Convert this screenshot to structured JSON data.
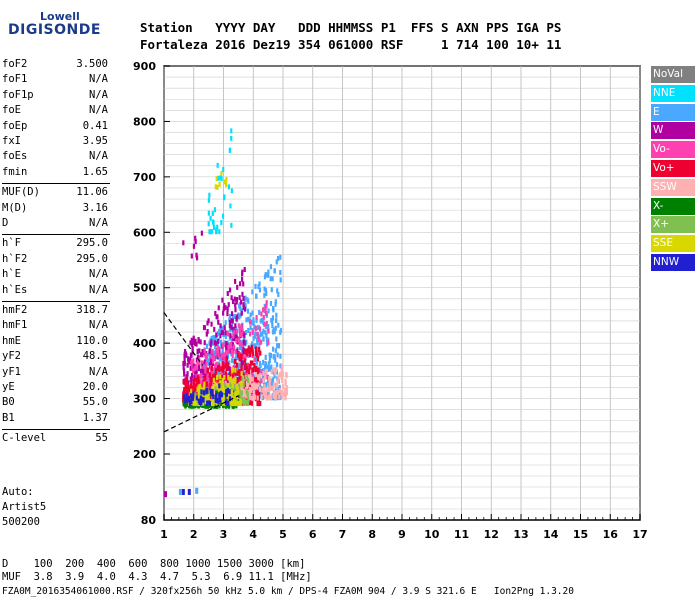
{
  "logo": {
    "line1": "Lowell",
    "line2": "DIGISONDE"
  },
  "header": {
    "line1": "Station   YYYY DAY   DDD HHMMSS P1  FFS S AXN PPS IGA PS",
    "line2": "Fortaleza 2016 Dez19 354 061000 RSF     1 714 100 10+ 11"
  },
  "params": [
    {
      "name": "foF2",
      "value": "3.500"
    },
    {
      "name": "foF1",
      "value": "N/A"
    },
    {
      "name": "foF1p",
      "value": "N/A"
    },
    {
      "name": "foE",
      "value": "N/A"
    },
    {
      "name": "foEp",
      "value": "0.41"
    },
    {
      "name": "fxI",
      "value": "3.95"
    },
    {
      "name": "foEs",
      "value": "N/A"
    },
    {
      "name": "fmin",
      "value": "1.65"
    },
    {
      "name": "MUF(D)",
      "value": "11.06"
    },
    {
      "name": "M(D)",
      "value": "3.16"
    },
    {
      "name": "D",
      "value": "N/A"
    },
    {
      "name": "h`F",
      "value": "295.0"
    },
    {
      "name": "h`F2",
      "value": "295.0"
    },
    {
      "name": "h`E",
      "value": "N/A"
    },
    {
      "name": "h`Es",
      "value": "N/A"
    },
    {
      "name": "hmF2",
      "value": "318.7"
    },
    {
      "name": "hmF1",
      "value": "N/A"
    },
    {
      "name": "hmE",
      "value": "110.0"
    },
    {
      "name": "yF2",
      "value": "48.5"
    },
    {
      "name": "yF1",
      "value": "N/A"
    },
    {
      "name": "yE",
      "value": "20.0"
    },
    {
      "name": "B0",
      "value": "55.0"
    },
    {
      "name": "B1",
      "value": "1.37"
    },
    {
      "name": "C-level",
      "value": "55"
    }
  ],
  "auto": {
    "line1": "Auto:",
    "line2": "Artist5",
    "line3": "500200"
  },
  "footer": {
    "d_row": "D    100  200  400  600  800 1000 1500 3000 [km]",
    "muf_row": "MUF  3.8  3.9  4.0  4.3  4.7  5.3  6.9 11.1 [MHz]",
    "file_row": "FZA0M_2016354061000.RSF / 320fx256h 50 kHz 5.0 km / DPS-4 FZA0M 904 / 3.9 S 321.6 E   Ion2Png 1.3.20"
  },
  "legend": [
    {
      "label": "NoVal",
      "color": "#808080"
    },
    {
      "label": "NNE",
      "color": "#00e0ff"
    },
    {
      "label": "E",
      "color": "#4aa8ff"
    },
    {
      "label": "W",
      "color": "#b000a0"
    },
    {
      "label": "Vo-",
      "color": "#ff40b0"
    },
    {
      "label": "Vo+",
      "color": "#ee0030"
    },
    {
      "label": "SSW",
      "color": "#ffb0b0"
    },
    {
      "label": "X-",
      "color": "#008000"
    },
    {
      "label": "X+",
      "color": "#80c050"
    },
    {
      "label": "SSE",
      "color": "#d8d800"
    },
    {
      "label": "NNW",
      "color": "#2020d0"
    }
  ],
  "chart_data": {
    "type": "scatter",
    "xlim": [
      1,
      17
    ],
    "ylim": [
      80,
      900
    ],
    "x_ticks": [
      1,
      2,
      3,
      4,
      5,
      6,
      7,
      8,
      9,
      10,
      11,
      12,
      13,
      14,
      15,
      16,
      17
    ],
    "y_ticks": [
      80,
      200,
      300,
      400,
      500,
      600,
      700,
      800,
      900
    ],
    "grid": true,
    "legend_position": "right",
    "clusters": [
      {
        "name": "E",
        "x": [
          2.3,
          4.9
        ],
        "y": [
          300,
          560
        ],
        "n": 650
      },
      {
        "name": "W",
        "x": [
          1.6,
          3.7
        ],
        "y": [
          300,
          540
        ],
        "n": 420
      },
      {
        "name": "Vo-",
        "x": [
          1.8,
          4.5
        ],
        "y": [
          300,
          480
        ],
        "n": 300
      },
      {
        "name": "Vo+",
        "x": [
          1.6,
          4.2
        ],
        "y": [
          290,
          400
        ],
        "n": 420
      },
      {
        "name": "SSW",
        "x": [
          2.6,
          5.1
        ],
        "y": [
          300,
          360
        ],
        "n": 220
      },
      {
        "name": "X-",
        "x": [
          1.6,
          3.5
        ],
        "y": [
          285,
          320
        ],
        "n": 140
      },
      {
        "name": "X+",
        "x": [
          1.8,
          3.8
        ],
        "y": [
          290,
          340
        ],
        "n": 120
      },
      {
        "name": "SSE",
        "x": [
          1.8,
          3.6
        ],
        "y": [
          290,
          360
        ],
        "n": 140
      },
      {
        "name": "NNW",
        "x": [
          1.6,
          3.2
        ],
        "y": [
          290,
          330
        ],
        "n": 60
      },
      {
        "name": "NNE",
        "x": [
          2.4,
          3.3
        ],
        "y": [
          600,
          800
        ],
        "n": 35
      },
      {
        "name": "W",
        "x": [
          1.6,
          2.3
        ],
        "y": [
          550,
          650
        ],
        "n": 8
      },
      {
        "name": "SSE",
        "x": [
          2.7,
          3.1
        ],
        "y": [
          680,
          720
        ],
        "n": 8
      }
    ],
    "low_echoes": [
      {
        "name": "NNW",
        "x": 1.6,
        "y": 131
      },
      {
        "name": "NNW",
        "x": 1.8,
        "y": 131
      },
      {
        "name": "E",
        "x": 1.5,
        "y": 131
      },
      {
        "name": "E",
        "x": 2.05,
        "y": 133
      },
      {
        "name": "W",
        "x": 1.0,
        "y": 127
      }
    ],
    "trace_lines": [
      {
        "style": "dashed",
        "x": [
          1.0,
          3.5
        ],
        "y": [
          240,
          305
        ]
      },
      {
        "style": "dashed",
        "x": [
          1.0,
          2.3
        ],
        "y": [
          455,
          360
        ]
      }
    ]
  }
}
